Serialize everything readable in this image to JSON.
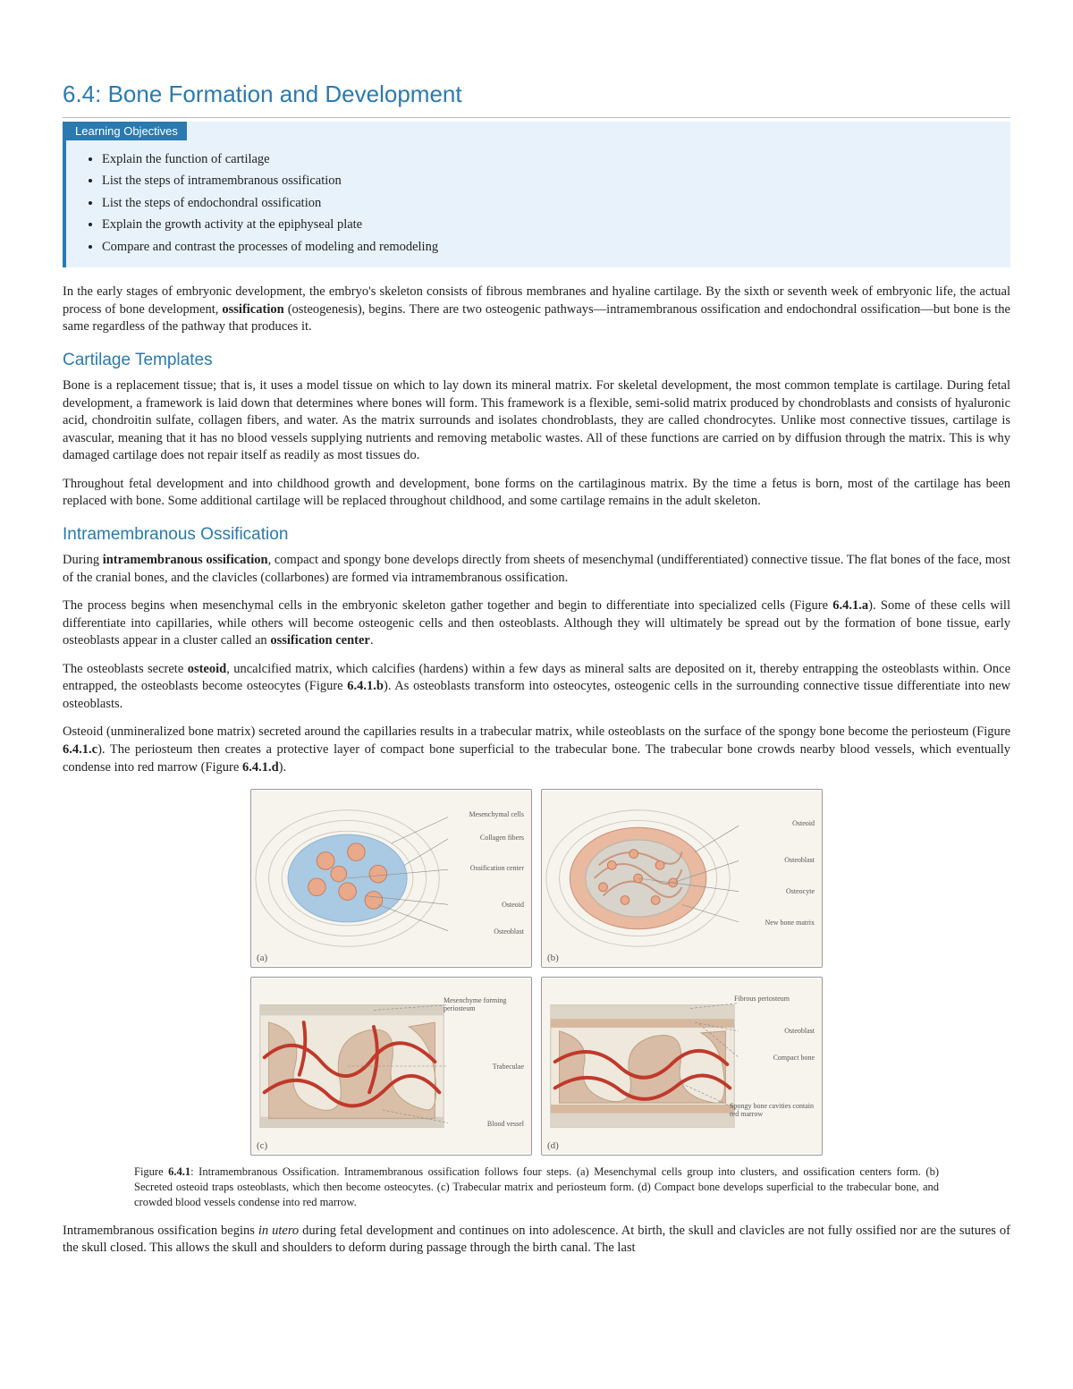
{
  "title": "6.4: Bone Formation and Development",
  "objectives": {
    "header": "Learning Objectives",
    "items": [
      "Explain the function of cartilage",
      "List the steps of intramembranous ossification",
      "List the steps of endochondral ossification",
      "Explain the growth activity at the epiphyseal plate",
      "Compare and contrast the processes of modeling and remodeling"
    ]
  },
  "intro": "In the early stages of embryonic development, the embryo's skeleton consists of fibrous membranes and hyaline cartilage. By the sixth or seventh week of embryonic life, the actual process of bone development, <strong>ossification</strong> (osteogenesis), begins. There are two osteogenic pathways—intramembranous ossification and endochondral ossification—but bone is the same regardless of the pathway that produces it.",
  "section1": {
    "heading": "Cartilage Templates",
    "p1": "Bone is a replacement tissue; that is, it uses a model tissue on which to lay down its mineral matrix. For skeletal development, the most common template is cartilage. During fetal development, a framework is laid down that determines where bones will form. This framework is a flexible, semi-solid matrix produced by chondroblasts and consists of hyaluronic acid, chondroitin sulfate, collagen fibers, and water. As the matrix surrounds and isolates chondroblasts, they are called chondrocytes. Unlike most connective tissues, cartilage is avascular, meaning that it has no blood vessels supplying nutrients and removing metabolic wastes. All of these functions are carried on by diffusion through the matrix. This is why damaged cartilage does not repair itself as readily as most tissues do.",
    "p2": "Throughout fetal development and into childhood growth and development, bone forms on the cartilaginous matrix. By the time a fetus is born, most of the cartilage has been replaced with bone. Some additional cartilage will be replaced throughout childhood, and some cartilage remains in the adult skeleton."
  },
  "section2": {
    "heading": "Intramembranous Ossification",
    "p1": "During <strong>intramembranous ossification</strong>, compact and spongy bone develops directly from sheets of mesenchymal (undifferentiated) connective tissue. The flat bones of the face, most of the cranial bones, and the clavicles (collarbones) are formed via intramembranous ossification.",
    "p2": "The process begins when mesenchymal cells in the embryonic skeleton gather together and begin to differentiate into specialized cells (Figure <strong>6.4.1.a</strong>). Some of these cells will differentiate into capillaries, while others will become osteogenic cells and then osteoblasts. Although they will ultimately be spread out by the formation of bone tissue, early osteoblasts appear in a cluster called an <strong>ossification center</strong>.",
    "p3": "The osteoblasts secrete <strong>osteoid</strong>, uncalcified matrix, which calcifies (hardens) within a few days as mineral salts are deposited on it, thereby entrapping the osteoblasts within. Once entrapped, the osteoblasts become osteocytes (Figure <strong>6.4.1.b</strong>). As osteoblasts transform into osteocytes, osteogenic cells in the surrounding connective tissue differentiate into new osteoblasts.",
    "p4": "Osteoid (unmineralized bone matrix) secreted around the capillaries results in a trabecular matrix, while osteoblasts on the surface of the spongy bone become the periosteum (Figure <strong>6.4.1.c</strong>). The periosteum then creates a protective layer of compact bone superficial to the trabecular bone. The trabecular bone crowds nearby blood vessels, which eventually condense into red marrow (Figure <strong>6.4.1.d</strong>).",
    "p5": "Intramembranous ossification begins <em>in utero</em> during fetal development and continues on into adolescence. At birth, the skull and clavicles are not fully ossified nor are the sutures of the skull closed. This allows the skull and shoulders to deform during passage through the birth canal. The last"
  },
  "figure": {
    "number": "6.4.1",
    "caption": "Figure <strong>6.4.1</strong>: Intramembranous Ossification. Intramembranous ossification follows four steps. (a) Mesenchymal cells group into clusters, and ossification centers form. (b) Secreted osteoid traps osteoblasts, which then become osteocytes. (c) Trabecular matrix and periosteum form. (d) Compact bone develops superficial to the trabecular bone, and crowded blood vessels condense into red marrow.",
    "panels": {
      "a": {
        "letter": "(a)",
        "labels": [
          "Mesenchymal cells",
          "Collagen fibers",
          "Ossification center",
          "Osteoid",
          "Osteoblast"
        ]
      },
      "b": {
        "letter": "(b)",
        "labels": [
          "Osteoid",
          "Osteoblast",
          "Osteocyte",
          "New bone matrix"
        ]
      },
      "c": {
        "letter": "(c)",
        "labels": [
          "Mesenchyme forming periosteum",
          "Trabeculae",
          "Blood vessel"
        ]
      },
      "d": {
        "letter": "(d)",
        "labels": [
          "Fibrous periosteum",
          "Osteoblast",
          "Compact bone",
          "Spongy bone cavities contain red marrow"
        ]
      }
    },
    "colors": {
      "cell_bg": "#aac9e2",
      "cell_nucleus": "#e9a98a",
      "cell_outline": "#c08060",
      "osteoid": "#e9b9a0",
      "bone_matrix": "#d6b89f",
      "vessel": "#c0392b",
      "periosteum": "#c9c4b8",
      "bg_lines": "#cfcabf",
      "panel_bg": "#f7f4ee"
    }
  }
}
